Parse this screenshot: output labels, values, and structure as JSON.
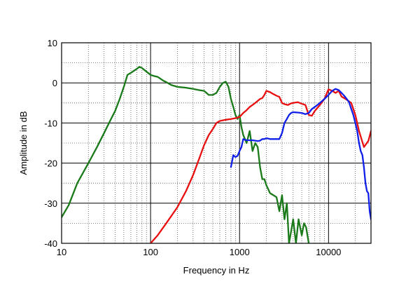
{
  "chart_data": {
    "type": "line",
    "title": "",
    "xlabel": "Frequency in Hz",
    "ylabel": "Amplitude in dB",
    "x_scale": "log",
    "xlim": [
      10,
      30000
    ],
    "ylim": [
      -40,
      10
    ],
    "x_tick_labels": [
      {
        "value": 10,
        "label": "10"
      },
      {
        "value": 100,
        "label": "100"
      },
      {
        "value": 1000,
        "label": "1000"
      },
      {
        "value": 10000,
        "label": "10000"
      }
    ],
    "y_tick_labels": [
      {
        "value": 10,
        "label": "10"
      },
      {
        "value": 0,
        "label": "0"
      },
      {
        "value": -10,
        "label": "-10"
      },
      {
        "value": -20,
        "label": "-20"
      },
      {
        "value": -30,
        "label": "-30"
      },
      {
        "value": -40,
        "label": "-40"
      }
    ],
    "grid": true,
    "legend": "none",
    "series": [
      {
        "color": "#1a7a1a",
        "x": [
          10,
          12,
          15,
          20,
          25,
          30,
          35,
          40,
          45,
          50,
          55,
          60,
          65,
          70,
          75,
          80,
          90,
          100,
          110,
          120,
          140,
          150,
          170,
          200,
          250,
          300,
          350,
          400,
          450,
          500,
          550,
          600,
          650,
          700,
          750,
          800,
          850,
          900,
          950,
          1000,
          1050,
          1100,
          1200,
          1300,
          1400,
          1500,
          1600,
          1700,
          1800,
          1900,
          2000,
          2200,
          2400,
          2600,
          2800,
          3000,
          3200,
          3400,
          3600,
          3800,
          4000,
          4300,
          4600,
          5000,
          5300,
          5600,
          6000
        ],
        "y": [
          -33.5,
          -30.5,
          -25,
          -20,
          -16,
          -12.5,
          -9.5,
          -7,
          -4,
          -1,
          2,
          2.5,
          3,
          3.5,
          4,
          3.7,
          2.8,
          2,
          1.7,
          1.5,
          0.5,
          0.2,
          -0.5,
          -1,
          -1.2,
          -1.5,
          -1.8,
          -2,
          -3,
          -3,
          -2.5,
          -1,
          0,
          0.3,
          -1,
          -4,
          -6,
          -8,
          -9,
          -8,
          -11,
          -13,
          -15,
          -12,
          -17,
          -15,
          -16,
          -21,
          -24,
          -24,
          -25.5,
          -27.5,
          -28,
          -28.5,
          -32,
          -28,
          -34,
          -30,
          -40,
          -37,
          -34,
          -40,
          -34,
          -38,
          -35,
          -36,
          -40
        ]
      },
      {
        "color": "#e81010",
        "x": [
          100,
          120,
          150,
          200,
          250,
          300,
          350,
          400,
          450,
          500,
          550,
          600,
          700,
          800,
          900,
          1000,
          1100,
          1200,
          1300,
          1400,
          1500,
          1600,
          1700,
          1800,
          1900,
          2000,
          2200,
          2400,
          2600,
          2800,
          3000,
          3200,
          3500,
          3800,
          4000,
          4500,
          5000,
          5500,
          6000,
          6500,
          7000,
          8000,
          9000,
          10000,
          11000,
          12000,
          13000,
          14000,
          16000,
          18000,
          20000,
          22000,
          25000,
          28000,
          30000
        ],
        "y": [
          -40,
          -38,
          -35,
          -31,
          -27,
          -23,
          -19,
          -15.5,
          -13,
          -11.5,
          -10,
          -9.5,
          -9.2,
          -9,
          -8.8,
          -8.5,
          -7.5,
          -6.8,
          -6,
          -5.5,
          -5,
          -4.5,
          -4,
          -3.8,
          -3,
          -2,
          -2.3,
          -2.8,
          -3.2,
          -3.5,
          -5,
          -5.3,
          -5.5,
          -5.1,
          -5,
          -4.8,
          -5.2,
          -5.5,
          -8,
          -8.2,
          -7,
          -5.5,
          -4,
          -1.6,
          -2,
          -2.5,
          -2,
          -3.4,
          -4.2,
          -5,
          -8,
          -12,
          -16,
          -14.5,
          -12
        ]
      },
      {
        "color": "#1020e8",
        "x": [
          800,
          850,
          900,
          950,
          1000,
          1050,
          1100,
          1150,
          1200,
          1300,
          1400,
          1500,
          1600,
          1700,
          1800,
          1900,
          2000,
          2200,
          2400,
          2600,
          2800,
          3000,
          3200,
          3400,
          3600,
          3800,
          4000,
          4500,
          5000,
          5500,
          6000,
          6500,
          7000,
          7500,
          8000,
          8500,
          9000,
          10000,
          11000,
          12000,
          13000,
          14000,
          15000,
          16000,
          17000,
          18000,
          19000,
          20000,
          21000,
          22000,
          23000,
          24000,
          25000,
          26000,
          27000,
          28000,
          29000,
          30000
        ],
        "y": [
          -21,
          -18,
          -18.5,
          -18.2,
          -17,
          -16,
          -14,
          -14.2,
          -14.3,
          -14.3,
          -14.3,
          -14.4,
          -14.5,
          -14.4,
          -14,
          -14,
          -13.8,
          -14,
          -14,
          -14,
          -14,
          -12.5,
          -10,
          -9,
          -8,
          -7.5,
          -7.3,
          -7.4,
          -7.5,
          -7.8,
          -7.5,
          -6.5,
          -6,
          -5.5,
          -5,
          -4.5,
          -4,
          -3,
          -2,
          -1.5,
          -1.8,
          -2.5,
          -3.2,
          -4,
          -4.8,
          -6.5,
          -8,
          -10,
          -12,
          -15,
          -17,
          -18,
          -21,
          -25,
          -27,
          -27.5,
          -32,
          -34
        ]
      }
    ]
  }
}
